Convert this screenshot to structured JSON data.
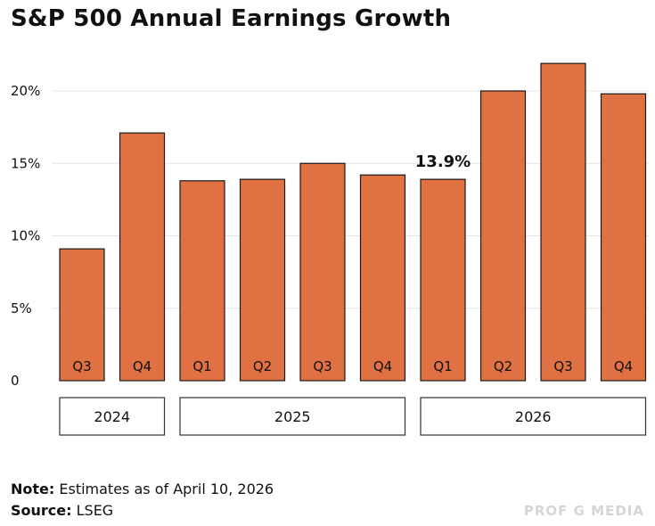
{
  "header": {
    "title": "S&P 500 Annual Earnings Growth"
  },
  "chart_data": {
    "type": "bar",
    "title": "S&P 500 Annual Earnings Growth",
    "categories": [
      "Q3",
      "Q4",
      "Q1",
      "Q2",
      "Q3",
      "Q4",
      "Q1",
      "Q2",
      "Q3",
      "Q4"
    ],
    "groups": [
      {
        "label": "2024",
        "categories": [
          "Q3",
          "Q4"
        ]
      },
      {
        "label": "2025",
        "categories": [
          "Q1",
          "Q2",
          "Q3",
          "Q4"
        ]
      },
      {
        "label": "2026",
        "categories": [
          "Q1",
          "Q2",
          "Q3",
          "Q4"
        ]
      }
    ],
    "values": [
      9.1,
      17.1,
      13.8,
      13.9,
      15.0,
      14.2,
      13.9,
      20.0,
      21.9,
      19.8
    ],
    "yticks": [
      "0",
      "5%",
      "10%",
      "15%",
      "20%"
    ],
    "ytick_values": [
      0,
      5,
      10,
      15,
      20
    ],
    "ylim": [
      0,
      23
    ],
    "grid": true,
    "annotations": [
      {
        "index": 6,
        "text": "13.9%"
      }
    ],
    "colors": {
      "bar": "#E07143",
      "bar_stroke": "#1a1a1a",
      "grid": "#e6e6e6"
    }
  },
  "footer": {
    "note_label": "Note:",
    "note_text": " Estimates as of April 10, 2026",
    "source_label": "Source:",
    "source_text": " LSEG",
    "watermark": "PROF G MEDIA"
  }
}
